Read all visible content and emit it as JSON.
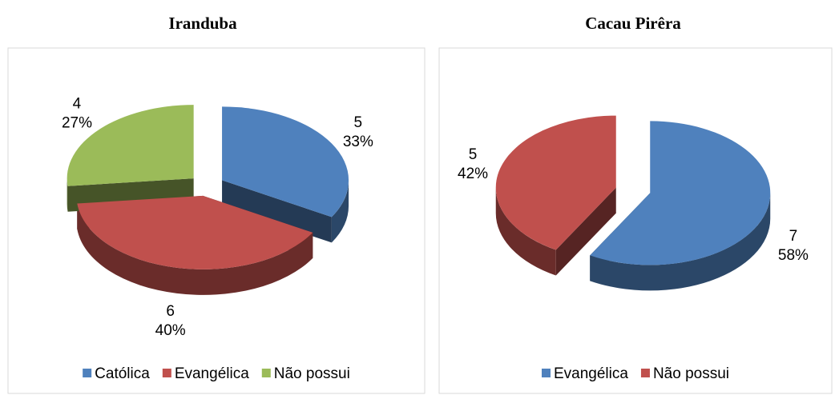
{
  "chart_data": [
    {
      "type": "pie3d",
      "title": "Iranduba",
      "categories": [
        "Católica",
        "Evangélica",
        "Não possui"
      ],
      "values": [
        5,
        6,
        4
      ],
      "percentages": [
        33,
        40,
        27
      ],
      "percentage_labels": [
        "33%",
        "40%",
        "27%"
      ],
      "colors": [
        "#4f81bd",
        "#c0504d",
        "#9bbb59"
      ],
      "legend": "bottom"
    },
    {
      "type": "pie3d",
      "title": "Cacau Pirêra",
      "categories": [
        "Evangélica",
        "Não possui"
      ],
      "values": [
        7,
        5
      ],
      "percentages": [
        58,
        42
      ],
      "percentage_labels": [
        "58%",
        "42%"
      ],
      "colors": [
        "#4f81bd",
        "#c0504d"
      ],
      "legend": "bottom"
    }
  ]
}
